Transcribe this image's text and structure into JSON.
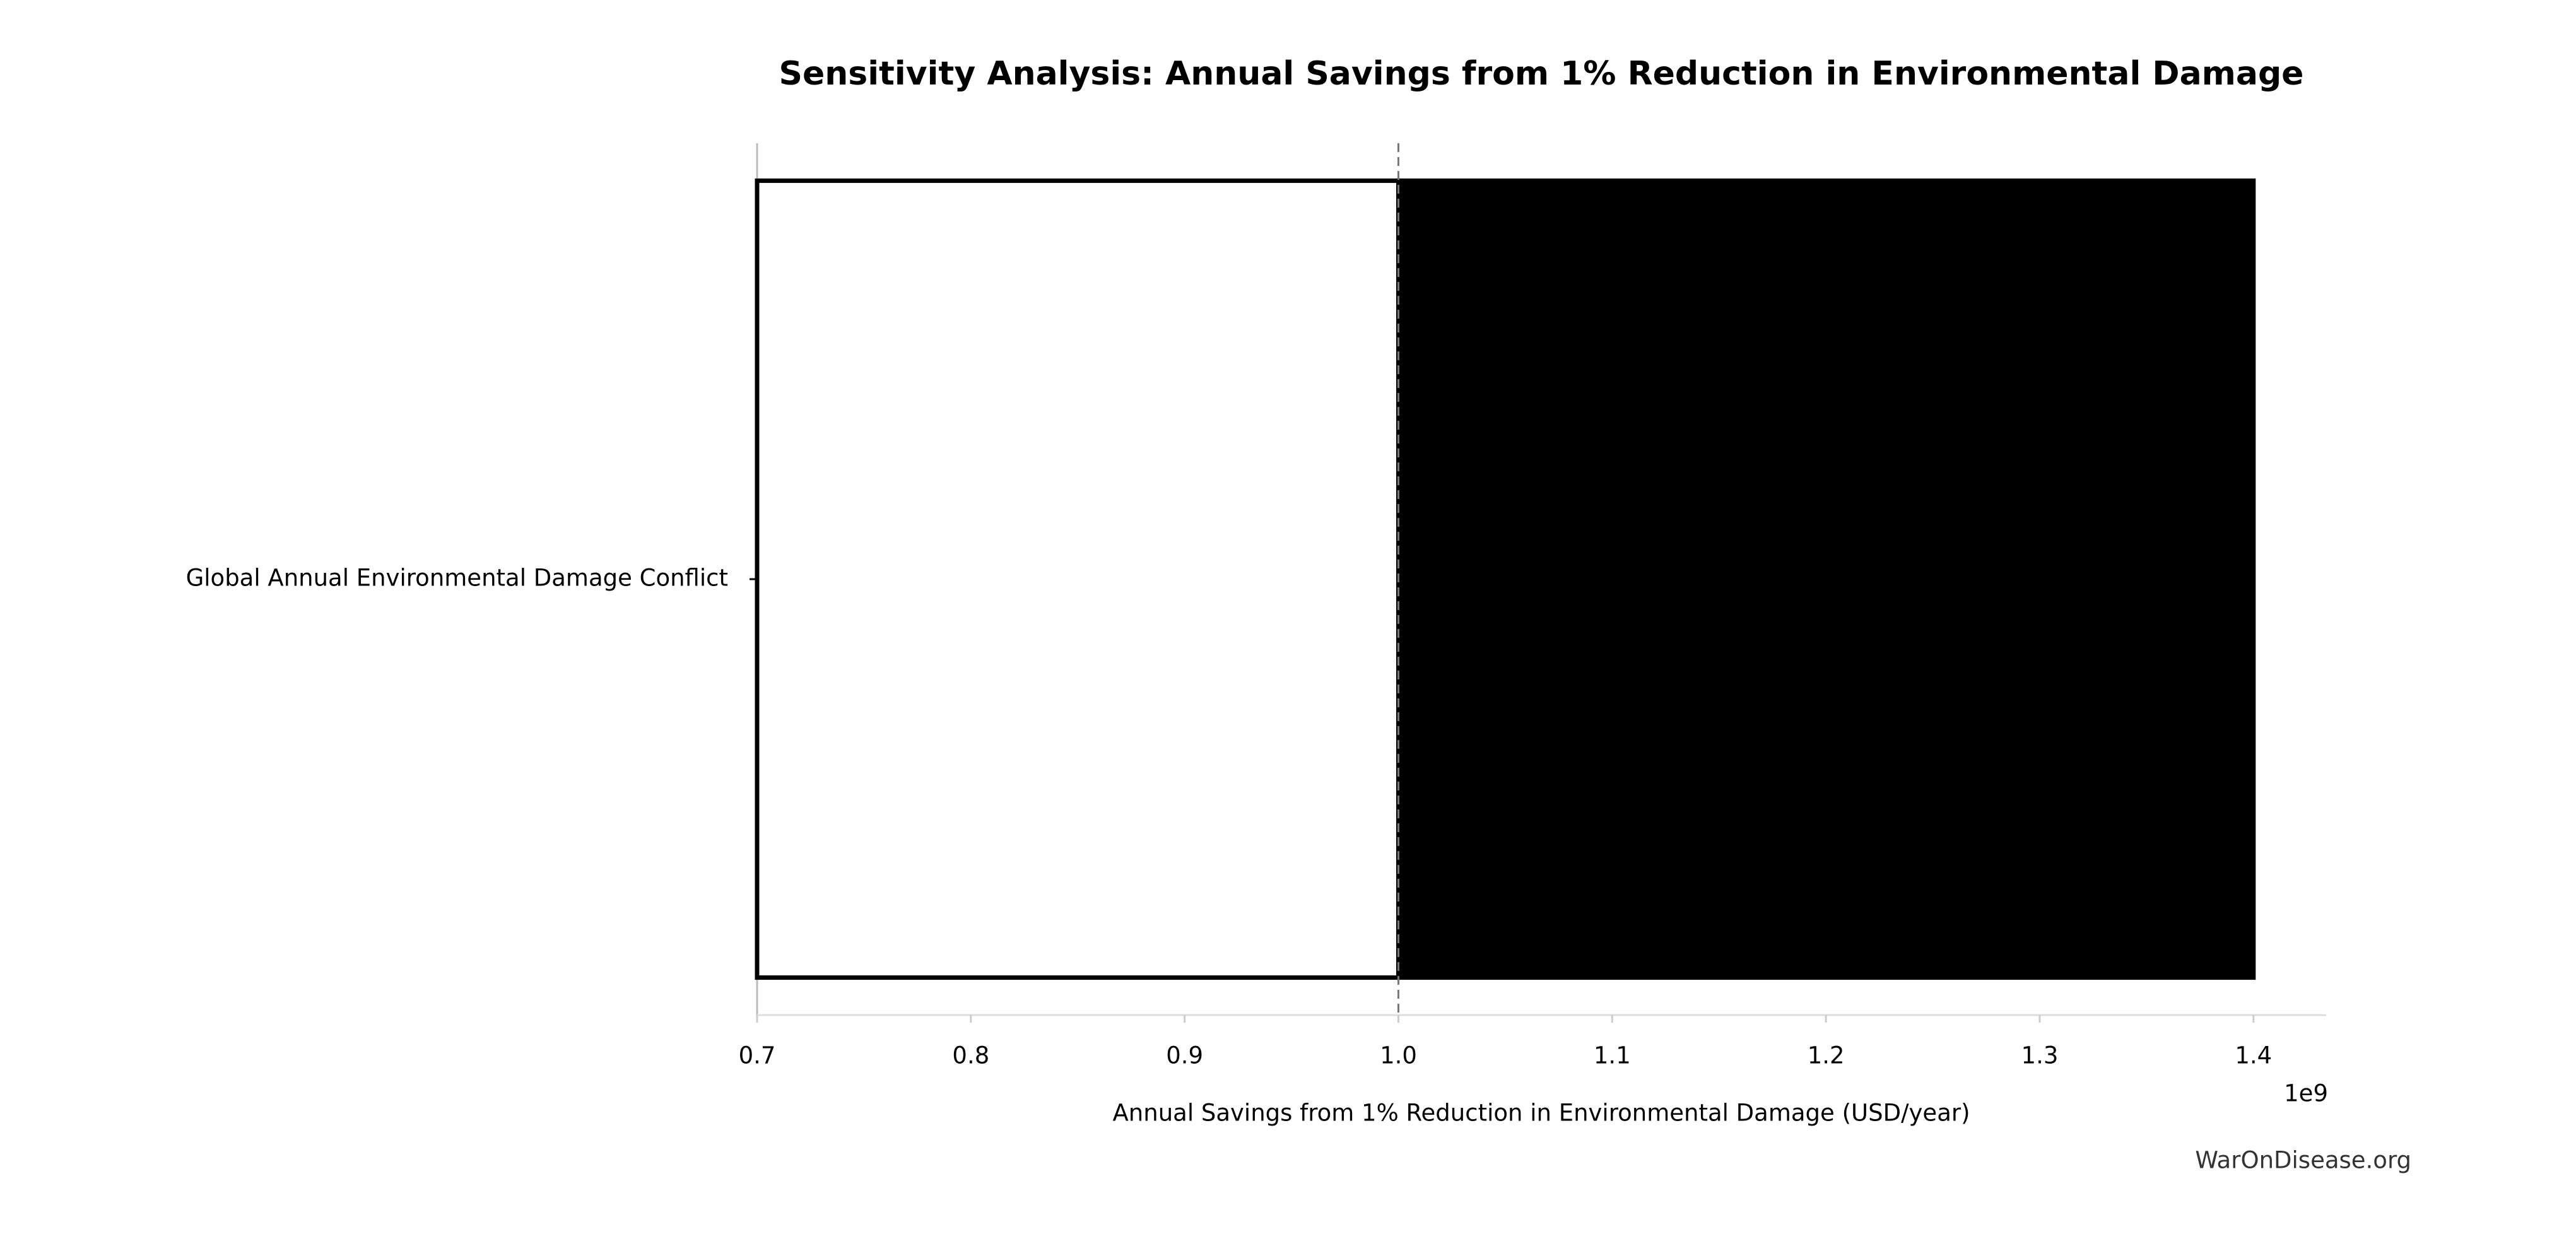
{
  "chart_data": {
    "type": "tornado",
    "title": "Sensitivity Analysis: Annual Savings from 1% Reduction in Environmental Damage",
    "xlabel": "Annual Savings from 1% Reduction in Environmental Damage (USD/year)",
    "offset_label": "1e9",
    "watermark": "WarOnDisease.org",
    "categories": [
      "Global Annual Environmental Damage Conflict"
    ],
    "low": [
      700000000
    ],
    "high": [
      1400000000
    ],
    "baseline": 1000000000,
    "low_color": "#ffffff",
    "high_color": "#000000",
    "xlim": [
      700000000,
      1434000000
    ],
    "xticks": [
      {
        "value": 700000000,
        "label": "0.7"
      },
      {
        "value": 800000000,
        "label": "0.8"
      },
      {
        "value": 900000000,
        "label": "0.9"
      },
      {
        "value": 1000000000,
        "label": "1.0"
      },
      {
        "value": 1100000000,
        "label": "1.1"
      },
      {
        "value": 1200000000,
        "label": "1.2"
      },
      {
        "value": 1300000000,
        "label": "1.3"
      },
      {
        "value": 1400000000,
        "label": "1.4"
      }
    ]
  }
}
